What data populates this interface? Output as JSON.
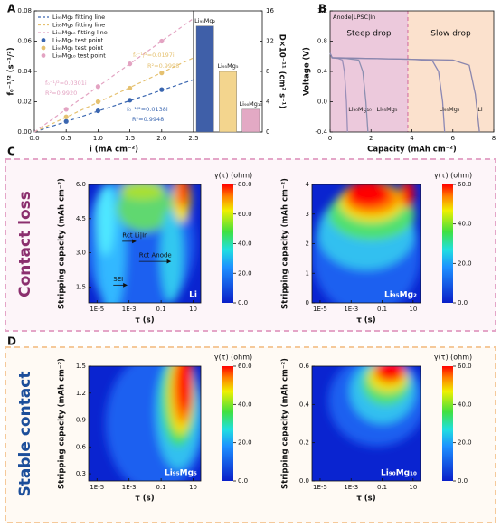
{
  "panel_labels": [
    "A",
    "B",
    "C",
    "D"
  ],
  "side_labels": [
    {
      "text": "Contact loss",
      "color": "#8b2f6e"
    },
    {
      "text": "Stable contact",
      "color": "#1c4e9a"
    }
  ],
  "chart_data": [
    {
      "type": "scatter",
      "xlabel": "i (mA cm⁻²)",
      "ylabel": "f₀⁻¹/² (s⁻¹/²)",
      "xlim": [
        0,
        2.5
      ],
      "ylim": [
        0,
        0.08
      ],
      "xticks": [
        {
          "value": 0,
          "label": "0.0"
        },
        0.5,
        {
          "value": 1,
          "label": "1.0"
        },
        1.5,
        {
          "value": 2,
          "label": "2.0"
        },
        2.5
      ],
      "yticks": [
        {
          "value": 0,
          "label": "0.00"
        },
        {
          "value": 0.02,
          "label": "0.02"
        },
        {
          "value": 0.04,
          "label": "0.04"
        },
        {
          "value": 0.06,
          "label": "0.06"
        },
        {
          "value": 0.08,
          "label": "0.08"
        }
      ],
      "series": [
        {
          "name": "Li₉₅Mg₂ fitting line",
          "color": "#3a66b0",
          "style": "line",
          "x": [
            0,
            2.5
          ],
          "values": [
            0,
            0.0345
          ]
        },
        {
          "name": "Li₉₅Mg₅ fitting line",
          "color": "#e5c170",
          "style": "line",
          "x": [
            0,
            2.5
          ],
          "values": [
            0,
            0.049
          ]
        },
        {
          "name": "Li₉₀Mg₁₀ fitting line",
          "color": "#e3a3c2",
          "style": "line",
          "x": [
            0,
            2.5
          ],
          "values": [
            0,
            0.075
          ]
        },
        {
          "name": "Li₉₅Mg₂ test point",
          "color": "#3a66b0",
          "style": "points",
          "x": [
            0.5,
            1,
            1.5,
            2
          ],
          "values": [
            0.007,
            0.014,
            0.021,
            0.028
          ]
        },
        {
          "name": "Li₉₅Mg₅ test point",
          "color": "#e5c170",
          "style": "points",
          "x": [
            0.5,
            1,
            1.5,
            2
          ],
          "values": [
            0.01,
            0.02,
            0.029,
            0.039
          ]
        },
        {
          "name": "Li₉₀Mg₁₀ test point",
          "color": "#e3a3c2",
          "style": "points",
          "x": [
            0.5,
            1,
            1.5,
            2
          ],
          "values": [
            0.015,
            0.03,
            0.045,
            0.06
          ]
        }
      ],
      "annotations": [
        {
          "text": "f₀⁻¹/²=0.0138i",
          "color": "#3a66b0"
        },
        {
          "text": "R²=0.9948",
          "color": "#3a66b0"
        },
        {
          "text": "f₀⁻¹/²=0.0197i",
          "color": "#e5c170"
        },
        {
          "text": "R²=0.9998",
          "color": "#e5c170"
        },
        {
          "text": "f₀⁻¹/²=0.0301i",
          "color": "#e3a3c2"
        },
        {
          "text": "R²=0.9920",
          "color": "#e3a3c2"
        }
      ]
    },
    {
      "type": "bar",
      "ylabel": "D×10⁻¹¹ (cm² s⁻¹)",
      "categories": [
        "Li₉₅Mg₂",
        "Li₉₅Mg₅",
        "Li₉₀Mg₁₀"
      ],
      "values": [
        14,
        8,
        3
      ],
      "colors": [
        "#3f5fa8",
        "#f3d58e",
        "#e3a9c4"
      ],
      "ylim": [
        0,
        16
      ],
      "yticks": [
        0,
        4,
        8,
        12,
        16
      ]
    },
    {
      "type": "line",
      "xlabel": "Capacity (mAh cm⁻²)",
      "ylabel": "Voltage (V)",
      "xlim": [
        0,
        8
      ],
      "ylim": [
        -0.4,
        1.2
      ],
      "xticks": [
        0,
        2,
        4,
        6,
        8
      ],
      "yticks": [
        -0.4,
        {
          "value": 0,
          "label": "0.0"
        },
        0.4,
        0.8,
        1.2
      ],
      "regions": {
        "header": "Anode|LPSC|In",
        "labels": [
          "Steep drop",
          "Slow drop"
        ],
        "boundary": 3.8,
        "colors": [
          "#ecc9dc",
          "#fbe1cd"
        ]
      },
      "series": [
        {
          "name": "Li₉₀Mg₁₀",
          "color": "#9a8fb8",
          "x": [
            0,
            0.1,
            0.4,
            0.6,
            0.7,
            0.8,
            0.85
          ],
          "values": [
            0.64,
            0.58,
            0.57,
            0.55,
            0.4,
            0.0,
            -0.4
          ]
        },
        {
          "name": "Li₉₅Mg₅",
          "color": "#8c8fb0",
          "x": [
            0,
            0.1,
            0.8,
            1.4,
            1.6,
            1.75,
            1.85
          ],
          "values": [
            0.64,
            0.58,
            0.57,
            0.55,
            0.4,
            0.0,
            -0.4
          ]
        },
        {
          "name": "Li₉₅Mg₂",
          "color": "#8b88b4",
          "x": [
            0,
            0.1,
            2,
            4,
            5,
            5.3,
            5.5,
            5.6
          ],
          "values": [
            0.64,
            0.58,
            0.57,
            0.56,
            0.54,
            0.4,
            0.0,
            -0.4
          ]
        },
        {
          "name": "Li",
          "color": "#8a86ad",
          "x": [
            0,
            0.1,
            2,
            4,
            6,
            6.8,
            7.1,
            7.3
          ],
          "values": [
            0.64,
            0.58,
            0.57,
            0.56,
            0.55,
            0.48,
            0.1,
            -0.4
          ]
        }
      ]
    },
    {
      "type": "heatmap",
      "label": "Li",
      "xlabel": "τ (s)",
      "ylabel": "Stripping capacity (mAh cm⁻²)",
      "colorbar_title": "γ(τ) (ohm)",
      "log_x": true,
      "xlim": [
        3e-06,
        30
      ],
      "xticks": [
        {
          "value": 1e-05,
          "label": "1E-5"
        },
        {
          "value": 0.001,
          "label": "1E-3"
        },
        0.1,
        10
      ],
      "ylim": [
        0.8,
        6
      ],
      "yticks": [
        1.5,
        {
          "value": 3,
          "label": "3.0"
        },
        4.5,
        {
          "value": 6,
          "label": "6.0"
        }
      ],
      "clim": [
        0,
        80
      ],
      "cticks": [
        {
          "value": 0,
          "label": "0.0"
        },
        {
          "value": 20,
          "label": "20.0"
        },
        {
          "value": 40,
          "label": "40.0"
        },
        {
          "value": 60,
          "label": "60.0"
        },
        {
          "value": 80,
          "label": "80.0"
        }
      ],
      "annotations": [
        "Rct Li|In",
        "Rct Anode",
        "SEI"
      ]
    },
    {
      "type": "heatmap",
      "label": "Li₉₅Mg₂",
      "xlabel": "τ (s)",
      "ylabel": "Stripping capacity (mAh cm⁻²)",
      "colorbar_title": "γ(τ) (ohm)",
      "log_x": true,
      "xlim": [
        3e-06,
        30
      ],
      "xticks": [
        {
          "value": 1e-05,
          "label": "1E-5"
        },
        {
          "value": 0.001,
          "label": "1E-3"
        },
        0.1,
        10
      ],
      "ylim": [
        0,
        4
      ],
      "yticks": [
        0,
        1,
        2,
        3,
        4
      ],
      "clim": [
        0,
        60
      ],
      "cticks": [
        {
          "value": 0,
          "label": "0.0"
        },
        {
          "value": 20,
          "label": "20.0"
        },
        {
          "value": 40,
          "label": "40.0"
        },
        {
          "value": 60,
          "label": "60.0"
        }
      ]
    },
    {
      "type": "heatmap",
      "label": "Li₉₅Mg₅",
      "xlabel": "τ (s)",
      "ylabel": "Stripping capacity (mAh cm⁻²)",
      "colorbar_title": "γ(τ) (ohm)",
      "log_x": true,
      "xlim": [
        3e-06,
        30
      ],
      "xticks": [
        {
          "value": 1e-05,
          "label": "1E-5"
        },
        {
          "value": 0.001,
          "label": "1E-3"
        },
        0.1,
        10
      ],
      "ylim": [
        0.22,
        1.5
      ],
      "yticks": [
        0.3,
        0.6,
        0.9,
        1.2,
        1.5
      ],
      "clim": [
        0,
        60
      ],
      "cticks": [
        {
          "value": 0,
          "label": "0.0"
        },
        {
          "value": 20,
          "label": "20.0"
        },
        {
          "value": 40,
          "label": "40.0"
        },
        {
          "value": 60,
          "label": "60.0"
        }
      ]
    },
    {
      "type": "heatmap",
      "label": "Li₉₀Mg₁₀",
      "xlabel": "τ (s)",
      "ylabel": "Stripping capacity (mAh cm⁻²)",
      "colorbar_title": "γ(τ) (ohm)",
      "log_x": true,
      "xlim": [
        3e-06,
        30
      ],
      "xticks": [
        {
          "value": 1e-05,
          "label": "1E-5"
        },
        {
          "value": 0.001,
          "label": "1E-3"
        },
        0.1,
        10
      ],
      "ylim": [
        0,
        0.6
      ],
      "yticks": [
        {
          "value": 0,
          "label": "0.0"
        },
        0.2,
        0.4,
        0.6
      ],
      "clim": [
        0,
        60
      ],
      "cticks": [
        {
          "value": 0,
          "label": "0.0"
        },
        {
          "value": 20,
          "label": "20.0"
        },
        {
          "value": 40,
          "label": "40.0"
        },
        {
          "value": 60,
          "label": "60.0"
        }
      ]
    }
  ]
}
